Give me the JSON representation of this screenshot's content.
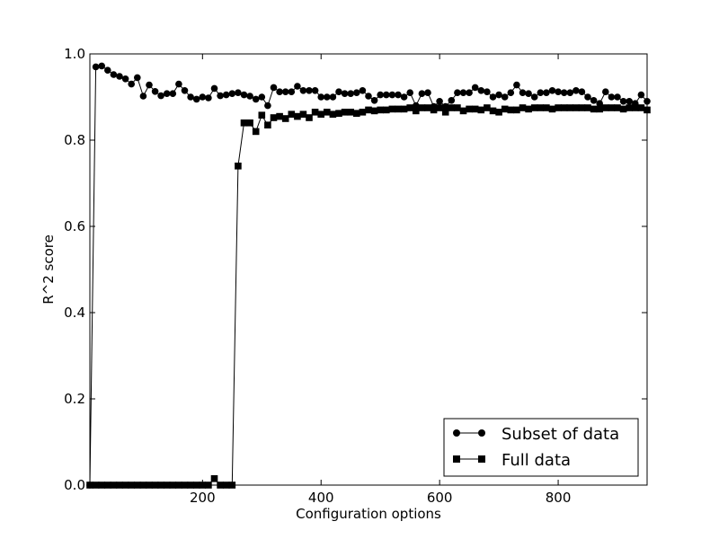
{
  "chart_data": {
    "type": "line",
    "xlabel": "Configuration options",
    "ylabel": "R^2 score",
    "xlim": [
      10,
      950
    ],
    "ylim": [
      0.0,
      1.0
    ],
    "x_ticks": [
      200,
      400,
      600,
      800
    ],
    "x_tick_labels": [
      "200",
      "400",
      "600",
      "800"
    ],
    "y_ticks": [
      0.0,
      0.2,
      0.4,
      0.6,
      0.8,
      1.0
    ],
    "y_tick_labels": [
      "0.0",
      "0.2",
      "0.4",
      "0.6",
      "0.8",
      "1.0"
    ],
    "grid": false,
    "legend_position": "lower-right",
    "x": [
      10,
      20,
      30,
      40,
      50,
      60,
      70,
      80,
      90,
      100,
      110,
      120,
      130,
      140,
      150,
      160,
      170,
      180,
      190,
      200,
      210,
      220,
      230,
      240,
      250,
      260,
      270,
      280,
      290,
      300,
      310,
      320,
      330,
      340,
      350,
      360,
      370,
      380,
      390,
      400,
      410,
      420,
      430,
      440,
      450,
      460,
      470,
      480,
      490,
      500,
      510,
      520,
      530,
      540,
      550,
      560,
      570,
      580,
      590,
      600,
      610,
      620,
      630,
      640,
      650,
      660,
      670,
      680,
      690,
      700,
      710,
      720,
      730,
      740,
      750,
      760,
      770,
      780,
      790,
      800,
      810,
      820,
      830,
      840,
      850,
      860,
      870,
      880,
      890,
      900,
      910,
      920,
      930,
      940,
      950
    ],
    "series": [
      {
        "name": "Subset of data",
        "marker": "circle",
        "color": "#000000",
        "values": [
          0.0,
          0.97,
          0.972,
          0.962,
          0.952,
          0.948,
          0.942,
          0.93,
          0.945,
          0.902,
          0.928,
          0.913,
          0.903,
          0.908,
          0.908,
          0.93,
          0.915,
          0.9,
          0.895,
          0.9,
          0.898,
          0.92,
          0.903,
          0.905,
          0.908,
          0.91,
          0.905,
          0.902,
          0.895,
          0.9,
          0.88,
          0.922,
          0.912,
          0.912,
          0.912,
          0.925,
          0.915,
          0.915,
          0.915,
          0.9,
          0.9,
          0.9,
          0.912,
          0.908,
          0.908,
          0.91,
          0.915,
          0.902,
          0.892,
          0.905,
          0.905,
          0.905,
          0.905,
          0.9,
          0.91,
          0.88,
          0.908,
          0.91,
          0.878,
          0.89,
          0.878,
          0.892,
          0.91,
          0.91,
          0.91,
          0.922,
          0.915,
          0.912,
          0.9,
          0.905,
          0.9,
          0.91,
          0.928,
          0.91,
          0.908,
          0.9,
          0.91,
          0.91,
          0.915,
          0.912,
          0.91,
          0.91,
          0.915,
          0.912,
          0.9,
          0.892,
          0.885,
          0.912,
          0.9,
          0.9,
          0.89,
          0.89,
          0.885,
          0.905,
          0.89
        ]
      },
      {
        "name": "Full data",
        "marker": "square",
        "color": "#000000",
        "values": [
          0.0,
          0.0,
          0.0,
          0.0,
          0.0,
          0.0,
          0.0,
          0.0,
          0.0,
          0.0,
          0.0,
          0.0,
          0.0,
          0.0,
          0.0,
          0.0,
          0.0,
          0.0,
          0.0,
          0.0,
          0.0,
          0.015,
          0.0,
          0.0,
          0.0,
          0.74,
          0.84,
          0.84,
          0.82,
          0.858,
          0.835,
          0.852,
          0.855,
          0.85,
          0.86,
          0.855,
          0.86,
          0.852,
          0.865,
          0.86,
          0.865,
          0.86,
          0.862,
          0.865,
          0.865,
          0.862,
          0.865,
          0.87,
          0.868,
          0.87,
          0.87,
          0.872,
          0.872,
          0.872,
          0.875,
          0.868,
          0.875,
          0.875,
          0.87,
          0.875,
          0.865,
          0.875,
          0.875,
          0.868,
          0.872,
          0.872,
          0.87,
          0.875,
          0.868,
          0.865,
          0.872,
          0.87,
          0.87,
          0.875,
          0.872,
          0.875,
          0.875,
          0.875,
          0.872,
          0.875,
          0.875,
          0.875,
          0.875,
          0.875,
          0.875,
          0.872,
          0.872,
          0.875,
          0.875,
          0.875,
          0.872,
          0.875,
          0.875,
          0.875,
          0.87
        ]
      }
    ]
  }
}
